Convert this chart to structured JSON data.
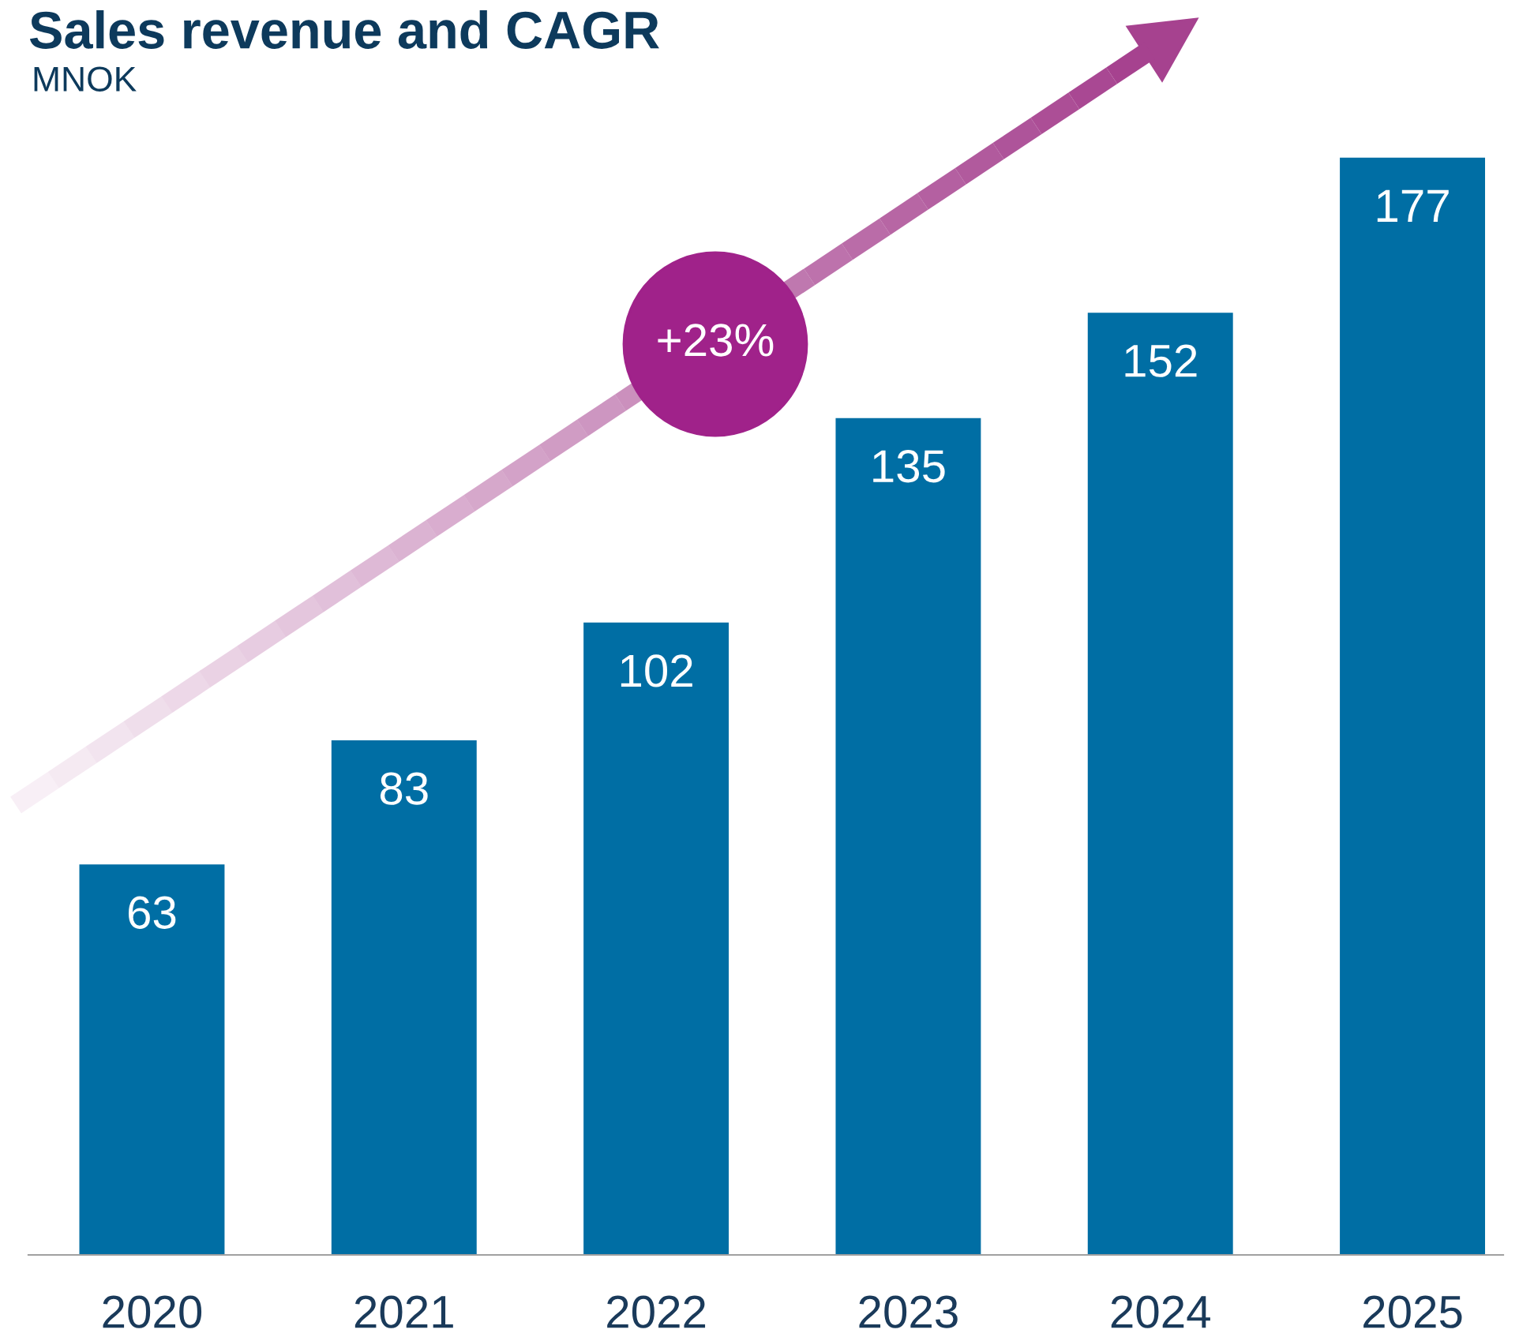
{
  "chart_data": {
    "type": "bar",
    "title": "Sales revenue and CAGR",
    "subtitle": "MNOK",
    "categories": [
      "2020",
      "2021",
      "2022",
      "2023",
      "2024",
      "2025"
    ],
    "values": [
      63,
      83,
      102,
      135,
      152,
      177
    ],
    "color": "#006ea4",
    "data_labels": true,
    "annotations": [
      "+23%"
    ],
    "grid": false,
    "legend": false
  }
}
